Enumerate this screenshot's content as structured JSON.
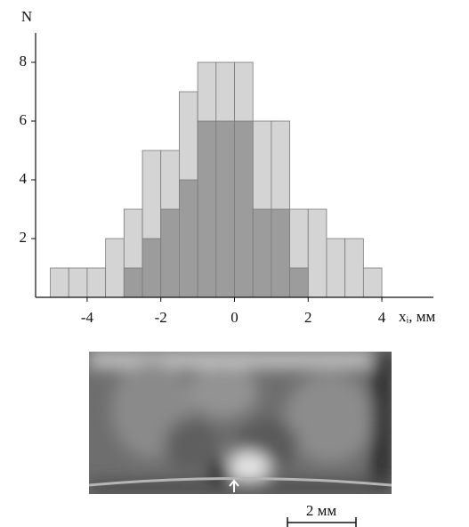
{
  "chart_data": {
    "type": "histogram",
    "y_label": "N",
    "x_label": "xᵢ, мм",
    "bins": [
      -5,
      -4.5,
      -4,
      -3.5,
      -3,
      -2.5,
      -2,
      -1.5,
      -1,
      -0.5,
      0,
      0.5,
      1,
      1.5,
      2,
      2.5,
      3,
      3.5,
      4
    ],
    "series": [
      {
        "color": "#d4d4d4",
        "values": [
          1,
          1,
          1,
          2,
          3,
          5,
          5,
          7,
          8,
          8,
          8,
          6,
          6,
          3,
          3,
          2,
          2,
          1
        ]
      },
      {
        "color": "#9c9c9c",
        "values": [
          0,
          0,
          0,
          0,
          1,
          2,
          3,
          4,
          6,
          6,
          6,
          3,
          3,
          1,
          0,
          0,
          0,
          0
        ]
      }
    ],
    "xlim": [
      -5.4,
      5.4
    ],
    "ylim": [
      0,
      9
    ],
    "xticks": [
      -4,
      -2,
      0,
      2,
      4
    ],
    "yticks": [
      2,
      4,
      6,
      8
    ]
  },
  "image": {
    "scale_label": "2 мм"
  }
}
